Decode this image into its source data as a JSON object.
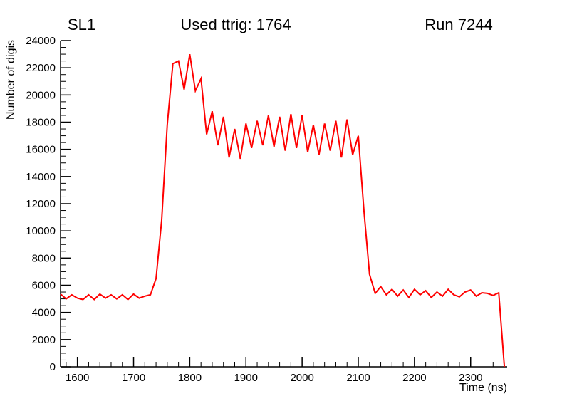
{
  "chart_data": {
    "type": "line",
    "title_left": "SL1",
    "title_center": "Used ttrig: 1764",
    "title_right": "Run 7244",
    "xlabel": "Time (ns)",
    "ylabel": "Number of digis",
    "xlim": [
      1570,
      2365
    ],
    "ylim": [
      0,
      24000
    ],
    "x_major_ticks": [
      1600,
      1700,
      1800,
      1900,
      2000,
      2100,
      2200,
      2300
    ],
    "x_minor_step": 20,
    "y_major_ticks": [
      0,
      2000,
      4000,
      6000,
      8000,
      10000,
      12000,
      14000,
      16000,
      18000,
      20000,
      22000,
      24000
    ],
    "y_minor_step": 500,
    "line_color": "#ff0000",
    "line_width": 2,
    "axis_color": "#000000",
    "x": [
      1570,
      1580,
      1590,
      1600,
      1610,
      1620,
      1630,
      1640,
      1650,
      1660,
      1670,
      1680,
      1690,
      1700,
      1710,
      1720,
      1730,
      1740,
      1750,
      1760,
      1770,
      1780,
      1790,
      1800,
      1810,
      1820,
      1830,
      1840,
      1850,
      1860,
      1870,
      1880,
      1890,
      1900,
      1910,
      1920,
      1930,
      1940,
      1950,
      1960,
      1970,
      1980,
      1990,
      2000,
      2010,
      2020,
      2030,
      2040,
      2050,
      2060,
      2070,
      2080,
      2090,
      2100,
      2110,
      2120,
      2130,
      2140,
      2150,
      2160,
      2170,
      2180,
      2190,
      2200,
      2210,
      2220,
      2230,
      2240,
      2250,
      2260,
      2270,
      2280,
      2290,
      2300,
      2310,
      2320,
      2330,
      2340,
      2350,
      2360
    ],
    "y": [
      5350,
      5000,
      5300,
      5050,
      4950,
      5300,
      4950,
      5350,
      5050,
      5300,
      5000,
      5300,
      4950,
      5350,
      5050,
      5200,
      5300,
      6500,
      10800,
      17800,
      22300,
      22500,
      20400,
      23000,
      20300,
      21200,
      17100,
      18800,
      16300,
      18400,
      15400,
      17500,
      15300,
      17900,
      16100,
      18100,
      16300,
      18500,
      16200,
      18400,
      15900,
      18600,
      16100,
      18500,
      15800,
      17800,
      15600,
      17900,
      15900,
      18100,
      15400,
      18200,
      15600,
      17000,
      11500,
      6800,
      5400,
      5900,
      5300,
      5700,
      5200,
      5650,
      5100,
      5700,
      5300,
      5600,
      5100,
      5500,
      5200,
      5700,
      5300,
      5150,
      5500,
      5650,
      5200,
      5450,
      5400,
      5250,
      5450,
      0
    ]
  }
}
